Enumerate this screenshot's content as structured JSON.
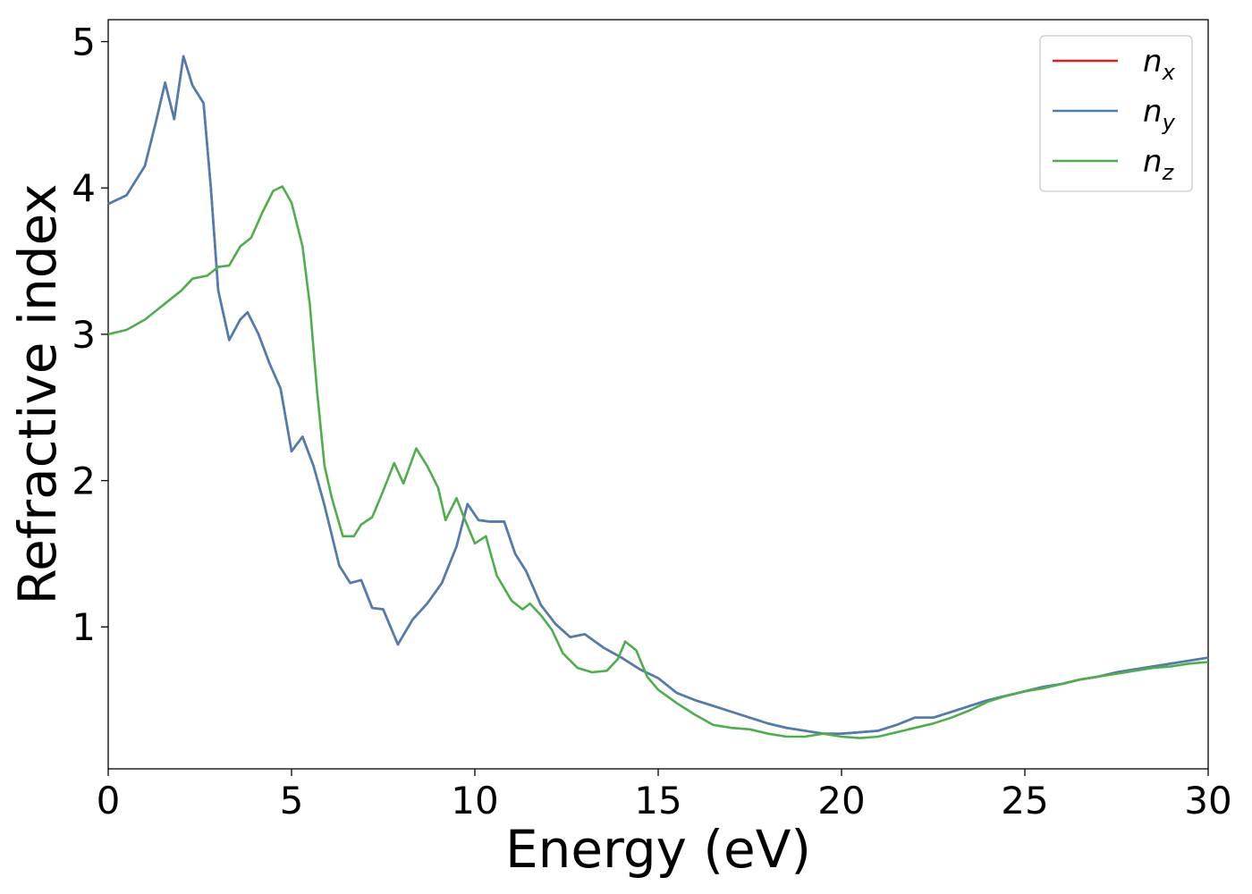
{
  "chart_data": {
    "type": "line",
    "title": "",
    "xlabel": "Energy (eV)",
    "ylabel": "Refractive index",
    "xlim": [
      0,
      30
    ],
    "ylim": [
      0.03,
      5.15
    ],
    "x_ticks": [
      0,
      5,
      10,
      15,
      20,
      25,
      30
    ],
    "y_ticks": [
      1,
      2,
      3,
      4,
      5
    ],
    "grid": false,
    "legend_position": "top-right",
    "series": [
      {
        "name": "n_x",
        "legend": {
          "base": "n",
          "sub": "x"
        },
        "color": "#e41a1c",
        "points": [
          [
            0,
            3.89
          ],
          [
            0.5,
            3.95
          ],
          [
            1.0,
            4.15
          ],
          [
            1.3,
            4.45
          ],
          [
            1.55,
            4.72
          ],
          [
            1.8,
            4.47
          ],
          [
            2.05,
            4.9
          ],
          [
            2.3,
            4.7
          ],
          [
            2.6,
            4.58
          ],
          [
            2.8,
            4.0
          ],
          [
            3.0,
            3.3
          ],
          [
            3.3,
            2.96
          ],
          [
            3.6,
            3.1
          ],
          [
            3.8,
            3.15
          ],
          [
            4.1,
            3.0
          ],
          [
            4.4,
            2.8
          ],
          [
            4.7,
            2.63
          ],
          [
            5.0,
            2.2
          ],
          [
            5.3,
            2.3
          ],
          [
            5.6,
            2.1
          ],
          [
            5.9,
            1.83
          ],
          [
            6.3,
            1.42
          ],
          [
            6.6,
            1.3
          ],
          [
            6.9,
            1.32
          ],
          [
            7.2,
            1.13
          ],
          [
            7.5,
            1.12
          ],
          [
            7.9,
            0.88
          ],
          [
            8.3,
            1.05
          ],
          [
            8.7,
            1.16
          ],
          [
            9.1,
            1.3
          ],
          [
            9.5,
            1.55
          ],
          [
            9.8,
            1.84
          ],
          [
            10.1,
            1.73
          ],
          [
            10.4,
            1.72
          ],
          [
            10.8,
            1.72
          ],
          [
            11.1,
            1.5
          ],
          [
            11.4,
            1.38
          ],
          [
            11.8,
            1.15
          ],
          [
            12.2,
            1.02
          ],
          [
            12.6,
            0.93
          ],
          [
            13.0,
            0.95
          ],
          [
            13.5,
            0.86
          ],
          [
            14.0,
            0.79
          ],
          [
            14.5,
            0.71
          ],
          [
            15.0,
            0.65
          ],
          [
            15.5,
            0.55
          ],
          [
            16.0,
            0.5
          ],
          [
            16.5,
            0.46
          ],
          [
            17.0,
            0.42
          ],
          [
            17.5,
            0.38
          ],
          [
            18.0,
            0.34
          ],
          [
            18.5,
            0.31
          ],
          [
            19.0,
            0.29
          ],
          [
            19.5,
            0.27
          ],
          [
            20.0,
            0.27
          ],
          [
            20.5,
            0.28
          ],
          [
            21.0,
            0.29
          ],
          [
            21.5,
            0.33
          ],
          [
            22.0,
            0.38
          ],
          [
            22.5,
            0.38
          ],
          [
            23.0,
            0.42
          ],
          [
            23.5,
            0.46
          ],
          [
            24.0,
            0.5
          ],
          [
            24.5,
            0.53
          ],
          [
            25.0,
            0.56
          ],
          [
            25.5,
            0.59
          ],
          [
            26.0,
            0.61
          ],
          [
            26.5,
            0.64
          ],
          [
            27.0,
            0.66
          ],
          [
            27.5,
            0.69
          ],
          [
            28.0,
            0.71
          ],
          [
            28.5,
            0.73
          ],
          [
            29.0,
            0.75
          ],
          [
            29.5,
            0.77
          ],
          [
            30.0,
            0.79
          ]
        ]
      },
      {
        "name": "n_y",
        "legend": {
          "base": "n",
          "sub": "y"
        },
        "color": "#4a7fb5",
        "points": [
          [
            0,
            3.89
          ],
          [
            0.5,
            3.95
          ],
          [
            1.0,
            4.15
          ],
          [
            1.3,
            4.45
          ],
          [
            1.55,
            4.72
          ],
          [
            1.8,
            4.47
          ],
          [
            2.05,
            4.9
          ],
          [
            2.3,
            4.7
          ],
          [
            2.6,
            4.58
          ],
          [
            2.8,
            4.0
          ],
          [
            3.0,
            3.3
          ],
          [
            3.3,
            2.96
          ],
          [
            3.6,
            3.1
          ],
          [
            3.8,
            3.15
          ],
          [
            4.1,
            3.0
          ],
          [
            4.4,
            2.8
          ],
          [
            4.7,
            2.63
          ],
          [
            5.0,
            2.2
          ],
          [
            5.3,
            2.3
          ],
          [
            5.6,
            2.1
          ],
          [
            5.9,
            1.83
          ],
          [
            6.3,
            1.42
          ],
          [
            6.6,
            1.3
          ],
          [
            6.9,
            1.32
          ],
          [
            7.2,
            1.13
          ],
          [
            7.5,
            1.12
          ],
          [
            7.9,
            0.88
          ],
          [
            8.3,
            1.05
          ],
          [
            8.7,
            1.16
          ],
          [
            9.1,
            1.3
          ],
          [
            9.5,
            1.55
          ],
          [
            9.8,
            1.84
          ],
          [
            10.1,
            1.73
          ],
          [
            10.4,
            1.72
          ],
          [
            10.8,
            1.72
          ],
          [
            11.1,
            1.5
          ],
          [
            11.4,
            1.38
          ],
          [
            11.8,
            1.15
          ],
          [
            12.2,
            1.02
          ],
          [
            12.6,
            0.93
          ],
          [
            13.0,
            0.95
          ],
          [
            13.5,
            0.86
          ],
          [
            14.0,
            0.79
          ],
          [
            14.5,
            0.71
          ],
          [
            15.0,
            0.65
          ],
          [
            15.5,
            0.55
          ],
          [
            16.0,
            0.5
          ],
          [
            16.5,
            0.46
          ],
          [
            17.0,
            0.42
          ],
          [
            17.5,
            0.38
          ],
          [
            18.0,
            0.34
          ],
          [
            18.5,
            0.31
          ],
          [
            19.0,
            0.29
          ],
          [
            19.5,
            0.27
          ],
          [
            20.0,
            0.27
          ],
          [
            20.5,
            0.28
          ],
          [
            21.0,
            0.29
          ],
          [
            21.5,
            0.33
          ],
          [
            22.0,
            0.38
          ],
          [
            22.5,
            0.38
          ],
          [
            23.0,
            0.42
          ],
          [
            23.5,
            0.46
          ],
          [
            24.0,
            0.5
          ],
          [
            24.5,
            0.53
          ],
          [
            25.0,
            0.56
          ],
          [
            25.5,
            0.59
          ],
          [
            26.0,
            0.61
          ],
          [
            26.5,
            0.64
          ],
          [
            27.0,
            0.66
          ],
          [
            27.5,
            0.69
          ],
          [
            28.0,
            0.71
          ],
          [
            28.5,
            0.73
          ],
          [
            29.0,
            0.75
          ],
          [
            29.5,
            0.77
          ],
          [
            30.0,
            0.79
          ]
        ]
      },
      {
        "name": "n_z",
        "legend": {
          "base": "n",
          "sub": "z"
        },
        "color": "#4daf4a",
        "points": [
          [
            0,
            3.0
          ],
          [
            0.5,
            3.03
          ],
          [
            1.0,
            3.1
          ],
          [
            1.5,
            3.2
          ],
          [
            2.0,
            3.3
          ],
          [
            2.3,
            3.38
          ],
          [
            2.7,
            3.4
          ],
          [
            3.0,
            3.46
          ],
          [
            3.3,
            3.47
          ],
          [
            3.6,
            3.6
          ],
          [
            3.9,
            3.66
          ],
          [
            4.2,
            3.83
          ],
          [
            4.5,
            3.98
          ],
          [
            4.75,
            4.01
          ],
          [
            5.0,
            3.9
          ],
          [
            5.3,
            3.6
          ],
          [
            5.5,
            3.2
          ],
          [
            5.7,
            2.6
          ],
          [
            5.9,
            2.1
          ],
          [
            6.1,
            1.88
          ],
          [
            6.4,
            1.62
          ],
          [
            6.7,
            1.62
          ],
          [
            6.9,
            1.7
          ],
          [
            7.2,
            1.75
          ],
          [
            7.5,
            1.93
          ],
          [
            7.8,
            2.12
          ],
          [
            8.05,
            1.98
          ],
          [
            8.4,
            2.22
          ],
          [
            8.7,
            2.1
          ],
          [
            9.0,
            1.95
          ],
          [
            9.2,
            1.73
          ],
          [
            9.5,
            1.88
          ],
          [
            9.7,
            1.75
          ],
          [
            10.0,
            1.57
          ],
          [
            10.3,
            1.62
          ],
          [
            10.6,
            1.35
          ],
          [
            11.0,
            1.18
          ],
          [
            11.3,
            1.12
          ],
          [
            11.5,
            1.16
          ],
          [
            11.8,
            1.08
          ],
          [
            12.1,
            0.98
          ],
          [
            12.4,
            0.82
          ],
          [
            12.8,
            0.72
          ],
          [
            13.2,
            0.69
          ],
          [
            13.6,
            0.7
          ],
          [
            13.9,
            0.78
          ],
          [
            14.1,
            0.9
          ],
          [
            14.4,
            0.84
          ],
          [
            14.7,
            0.66
          ],
          [
            15.0,
            0.57
          ],
          [
            15.5,
            0.48
          ],
          [
            16.0,
            0.4
          ],
          [
            16.5,
            0.33
          ],
          [
            17.0,
            0.31
          ],
          [
            17.5,
            0.3
          ],
          [
            18.0,
            0.27
          ],
          [
            18.5,
            0.25
          ],
          [
            19.0,
            0.25
          ],
          [
            19.5,
            0.27
          ],
          [
            20.0,
            0.25
          ],
          [
            20.5,
            0.24
          ],
          [
            21.0,
            0.25
          ],
          [
            21.5,
            0.28
          ],
          [
            22.0,
            0.31
          ],
          [
            22.5,
            0.34
          ],
          [
            23.0,
            0.38
          ],
          [
            23.5,
            0.43
          ],
          [
            24.0,
            0.49
          ],
          [
            24.5,
            0.53
          ],
          [
            25.0,
            0.56
          ],
          [
            25.5,
            0.58
          ],
          [
            26.0,
            0.61
          ],
          [
            26.5,
            0.64
          ],
          [
            27.0,
            0.66
          ],
          [
            27.5,
            0.68
          ],
          [
            28.0,
            0.7
          ],
          [
            28.5,
            0.72
          ],
          [
            29.0,
            0.73
          ],
          [
            29.5,
            0.75
          ],
          [
            30.0,
            0.76
          ]
        ]
      }
    ]
  }
}
